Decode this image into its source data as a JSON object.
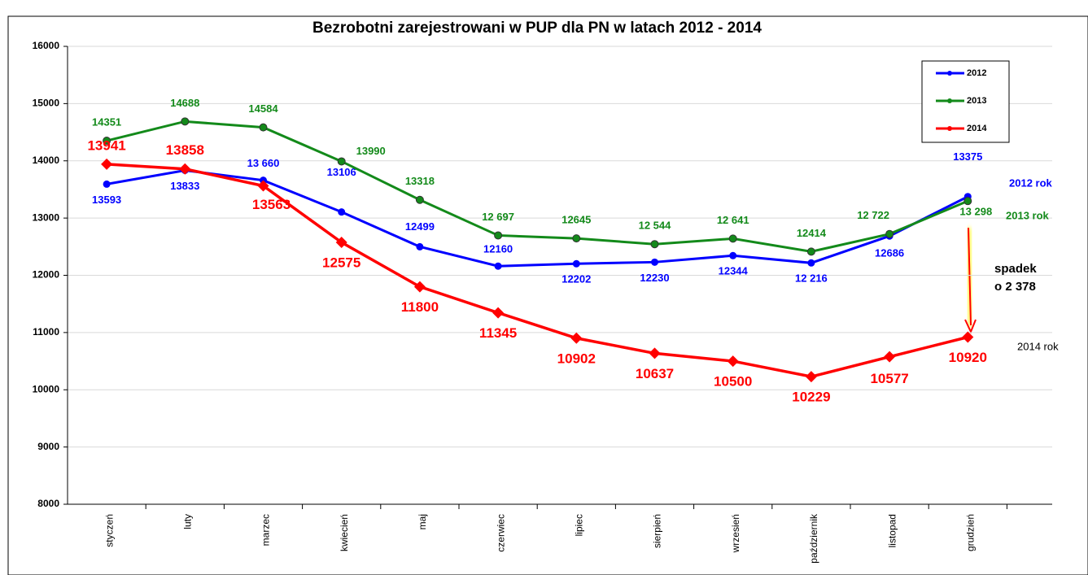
{
  "chart_data": {
    "type": "line",
    "title": "Bezrobotni zarejestrowani w PUP dla PN w latach 2012 - 2014",
    "categories": [
      "styczeń",
      "luty",
      "marzec",
      "kwiecień",
      "maj",
      "czerwiec",
      "lipiec",
      "sierpień",
      "wrzesień",
      "październik",
      "listopad",
      "grudzień"
    ],
    "series": [
      {
        "name": "2012",
        "color": "#0000ff",
        "values": [
          13593,
          13833,
          13660,
          13106,
          12499,
          12160,
          12202,
          12230,
          12344,
          12216,
          12686,
          13375
        ],
        "value_labels": [
          "13593",
          "13833",
          "13 660",
          "13106",
          "12499",
          "12160",
          "12202",
          "12230",
          "12344",
          "12 216",
          "12686",
          "13375"
        ]
      },
      {
        "name": "2013",
        "color": "#138a1a",
        "values": [
          14351,
          14688,
          14584,
          13990,
          13318,
          12697,
          12645,
          12544,
          12641,
          12414,
          12722,
          13298
        ],
        "value_labels": [
          "14351",
          "14688",
          "14584",
          "13990",
          "13318",
          "12 697",
          "12645",
          "12 544",
          "12 641",
          "12414",
          "12 722",
          "13 298"
        ]
      },
      {
        "name": "2014",
        "color": "#ff0000",
        "values": [
          13941,
          13858,
          13563,
          12575,
          11800,
          11345,
          10902,
          10637,
          10500,
          10229,
          10577,
          10920
        ]
      }
    ],
    "ylim": [
      8000,
      16000
    ],
    "yticks": [
      8000,
      9000,
      10000,
      11000,
      12000,
      13000,
      14000,
      15000,
      16000
    ],
    "grid": true,
    "legend": "upper right",
    "annotations": [
      "2012 rok",
      "2013 rok",
      "2014 rok",
      "spadek",
      "o 2 378"
    ]
  }
}
